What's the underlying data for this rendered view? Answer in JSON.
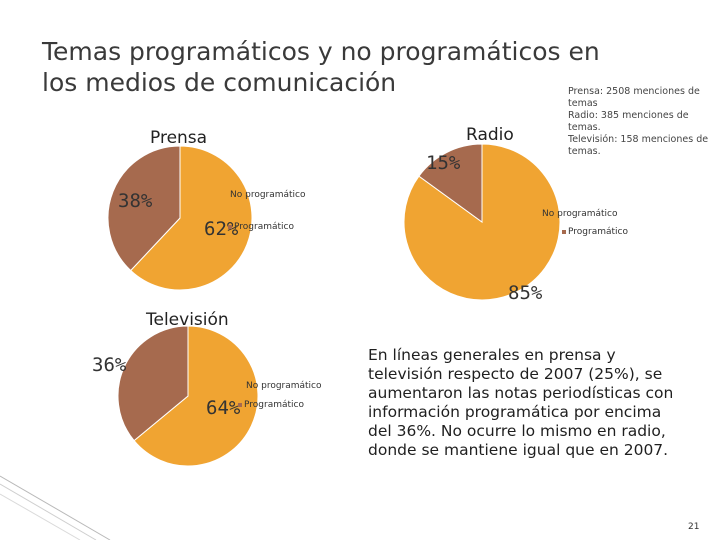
{
  "slide": {
    "title_lines": [
      "Temas programáticos y no programáticos en",
      "los medios de comunicación"
    ],
    "note_lines": [
      "Prensa: 2508 menciones de",
      "temas",
      "Radio: 385 menciones de",
      "temas.",
      "Televisión: 158 menciones de",
      "temas."
    ],
    "paragraph_lines": [
      "En líneas generales en prensa y",
      "televisión respecto de 2007 (25%), se",
      "aumentaron las notas periodísticas con",
      "información programática por encima",
      "del 36%. No ocurre lo mismo en radio,",
      "donde se mantiene igual que en 2007."
    ],
    "page_number": "21"
  },
  "colors": {
    "no_programatico": "#f0a432",
    "programatico": "#a66a4e",
    "slice_border": "#ffffff"
  },
  "chart_data": [
    {
      "type": "pie",
      "title": "Prensa",
      "categories": [
        "No programático",
        "Programático"
      ],
      "values": [
        62,
        38
      ],
      "labels": [
        "62%",
        "38%"
      ],
      "legend": [
        "No programático",
        "Programático"
      ]
    },
    {
      "type": "pie",
      "title": "Radio",
      "categories": [
        "No programático",
        "Programático"
      ],
      "values": [
        85,
        15
      ],
      "labels": [
        "85%",
        "15%"
      ],
      "legend": [
        "No programático",
        "Programático"
      ]
    },
    {
      "type": "pie",
      "title": "Televisión",
      "categories": [
        "No programático",
        "Programático"
      ],
      "values": [
        64,
        36
      ],
      "labels": [
        "64%",
        "36%"
      ],
      "legend": [
        "No programático",
        "Programático"
      ]
    }
  ]
}
